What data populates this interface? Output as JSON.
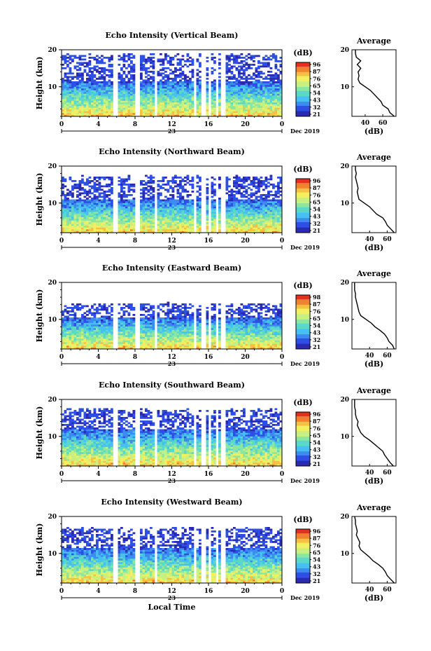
{
  "chart_data": [
    {
      "type": "heatmap",
      "title": "Echo Intensity (Vertical Beam)",
      "ylabel": "Height (km)",
      "ylim": [
        2,
        20
      ],
      "yticks": [
        "20",
        "10"
      ],
      "xticks": [
        "0",
        "4",
        "8",
        "12",
        "16",
        "20",
        "0"
      ],
      "day_label": "23",
      "date_label": "Dec 2019",
      "colorbar": {
        "unit": "(dB)",
        "ticks": [
          "96",
          "87",
          "76",
          "65",
          "54",
          "43",
          "32",
          "21"
        ]
      },
      "top_echo_km": 18.5,
      "strong_band_km": 11.5,
      "profile": {
        "title": "Average",
        "xlabel": "(dB)",
        "xticks": [
          "40",
          "60"
        ],
        "xlim": [
          25,
          75
        ],
        "yticks": [
          "20",
          "10"
        ],
        "height_km": [
          2,
          3,
          4,
          5,
          6,
          7,
          8,
          9,
          10,
          11,
          12,
          13,
          14,
          15,
          16,
          17,
          18,
          19,
          20
        ],
        "db": [
          73,
          68,
          66,
          60,
          58,
          54,
          50,
          46,
          40,
          34,
          32,
          33,
          32,
          35,
          31,
          35,
          30,
          29,
          29
        ]
      }
    },
    {
      "type": "heatmap",
      "title": "Echo Intensity (Northward Beam)",
      "ylabel": "Height (km)",
      "ylim": [
        2,
        20
      ],
      "yticks": [
        "20",
        "10"
      ],
      "xticks": [
        "0",
        "4",
        "8",
        "12",
        "16",
        "20",
        "0"
      ],
      "day_label": "23",
      "date_label": "Dec 2019",
      "colorbar": {
        "unit": "(dB)",
        "ticks": [
          "96",
          "87",
          "76",
          "65",
          "54",
          "43",
          "32",
          "21"
        ]
      },
      "top_echo_km": 17.0,
      "strong_band_km": 11.0,
      "profile": {
        "title": "Average",
        "xlabel": "(dB)",
        "xticks": [
          "40",
          "60"
        ],
        "xlim": [
          20,
          70
        ],
        "yticks": [
          "20",
          "10"
        ],
        "height_km": [
          2,
          3,
          4,
          5,
          6,
          7,
          8,
          9,
          10,
          11,
          12,
          13,
          14,
          15,
          16,
          17,
          18,
          19,
          20
        ],
        "db": [
          68,
          64,
          60,
          58,
          55,
          48,
          44,
          40,
          34,
          28,
          27,
          26,
          27,
          26,
          25,
          24,
          25,
          24,
          24
        ]
      }
    },
    {
      "type": "heatmap",
      "title": "Echo Intensity (Eastward Beam)",
      "ylabel": "Height (km)",
      "ylim": [
        2,
        20
      ],
      "yticks": [
        "20",
        "10"
      ],
      "xticks": [
        "0",
        "4",
        "8",
        "12",
        "16",
        "20",
        "0"
      ],
      "day_label": "23",
      "date_label": "Dec 2019",
      "colorbar": {
        "unit": "(dB)",
        "ticks": [
          "98",
          "87",
          "76",
          "65",
          "54",
          "43",
          "32",
          "21"
        ]
      },
      "top_echo_km": 14.0,
      "strong_band_km": 10.5,
      "profile": {
        "title": "Average",
        "xlabel": "(dB)",
        "xticks": [
          "40",
          "60"
        ],
        "xlim": [
          20,
          70
        ],
        "yticks": [
          "20",
          "10"
        ],
        "height_km": [
          2,
          3,
          4,
          5,
          6,
          7,
          8,
          9,
          10,
          11,
          12,
          13,
          14,
          15,
          16,
          17,
          18,
          19,
          20
        ],
        "db": [
          68,
          66,
          62,
          60,
          57,
          52,
          46,
          42,
          36,
          30,
          28,
          27,
          26,
          25,
          24,
          24,
          23,
          23,
          23
        ]
      }
    },
    {
      "type": "heatmap",
      "title": "Echo Intensity (Southward Beam)",
      "ylabel": "Height (km)",
      "ylim": [
        2,
        20
      ],
      "yticks": [
        "20",
        "10"
      ],
      "xticks": [
        "0",
        "4",
        "8",
        "12",
        "16",
        "20",
        "0"
      ],
      "day_label": "23",
      "date_label": "Dec 2019",
      "colorbar": {
        "unit": "(dB)",
        "ticks": [
          "96",
          "87",
          "76",
          "65",
          "54",
          "43",
          "32",
          "21"
        ]
      },
      "top_echo_km": 17.0,
      "strong_band_km": 12.0,
      "profile": {
        "title": "Average",
        "xlabel": "(dB)",
        "xticks": [
          "40",
          "60"
        ],
        "xlim": [
          20,
          70
        ],
        "yticks": [
          "20",
          "10"
        ],
        "height_km": [
          2,
          3,
          4,
          5,
          6,
          7,
          8,
          9,
          10,
          11,
          12,
          13,
          14,
          15,
          16,
          17,
          18,
          19,
          20
        ],
        "db": [
          67,
          63,
          60,
          57,
          55,
          50,
          45,
          40,
          34,
          30,
          28,
          26,
          27,
          25,
          24,
          24,
          23,
          23,
          23
        ]
      }
    },
    {
      "type": "heatmap",
      "title": "Echo Intensity (Westward Beam)",
      "ylabel": "Height (km)",
      "ylim": [
        2,
        20
      ],
      "yticks": [
        "20",
        "10"
      ],
      "xticks": [
        "0",
        "4",
        "8",
        "12",
        "16",
        "20",
        "0"
      ],
      "day_label": "23",
      "date_label": "Dec 2019",
      "xlabel": "Local Time",
      "colorbar": {
        "unit": "(dB)",
        "ticks": [
          "96",
          "87",
          "76",
          "65",
          "54",
          "43",
          "32",
          "21"
        ]
      },
      "top_echo_km": 16.5,
      "strong_band_km": 11.5,
      "profile": {
        "title": "Average",
        "xlabel": "(dB)",
        "xticks": [
          "40",
          "60"
        ],
        "xlim": [
          20,
          70
        ],
        "yticks": [
          "20",
          "10"
        ],
        "height_km": [
          2,
          3,
          4,
          5,
          6,
          7,
          8,
          9,
          10,
          11,
          12,
          13,
          14,
          15,
          16,
          17,
          18,
          19,
          20
        ],
        "db": [
          68,
          64,
          60,
          58,
          55,
          50,
          44,
          40,
          35,
          30,
          28,
          29,
          27,
          25,
          26,
          25,
          24,
          24,
          23
        ]
      }
    }
  ],
  "colors": {
    "palette": [
      "#2a2ab0",
      "#2e4fe6",
      "#3c8cf0",
      "#46c0f0",
      "#5ad8c8",
      "#8ce6a0",
      "#c8f080",
      "#f0f060",
      "#f8c040",
      "#f08030",
      "#e03020"
    ]
  },
  "gaps_hours": [
    5.9,
    8.3,
    10.2,
    14.5,
    15.5,
    16.2,
    17.0,
    17.6
  ]
}
